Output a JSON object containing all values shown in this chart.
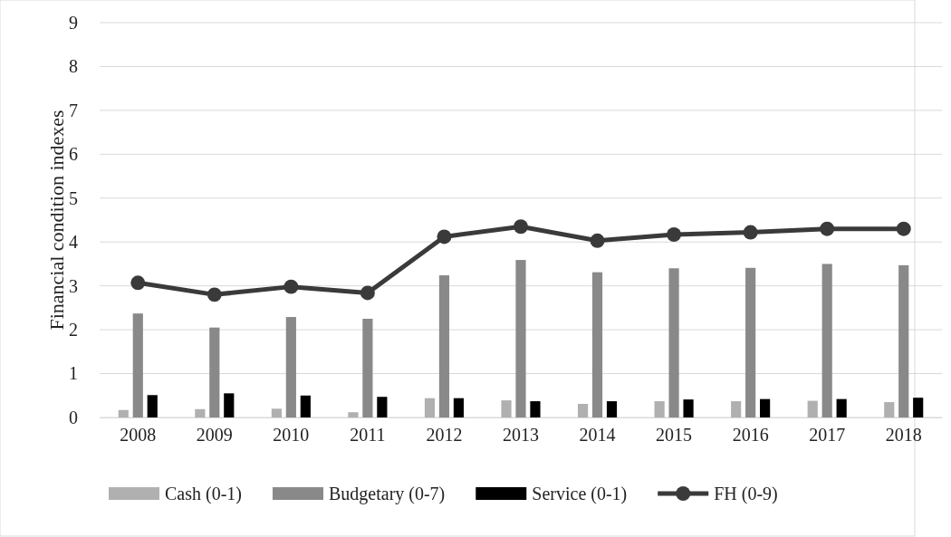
{
  "chart_data": {
    "type": "bar",
    "ylabel": "Financial condition indexes",
    "categories": [
      "2008",
      "2009",
      "2010",
      "2011",
      "2012",
      "2013",
      "2014",
      "2015",
      "2016",
      "2017",
      "2018"
    ],
    "series": [
      {
        "name": "Cash (0-1)",
        "color": "#b0b0b0",
        "values": [
          0.17,
          0.19,
          0.2,
          0.12,
          0.44,
          0.39,
          0.31,
          0.37,
          0.37,
          0.38,
          0.35
        ]
      },
      {
        "name": "Budgetary (0-7)",
        "color": "#898989",
        "values": [
          2.37,
          2.05,
          2.29,
          2.25,
          3.24,
          3.59,
          3.31,
          3.4,
          3.41,
          3.5,
          3.47
        ]
      },
      {
        "name": "Service (0-1)",
        "color": "#000000",
        "values": [
          0.51,
          0.55,
          0.5,
          0.47,
          0.44,
          0.37,
          0.37,
          0.41,
          0.42,
          0.42,
          0.45
        ]
      },
      {
        "name": "FH (0-9)",
        "type": "line",
        "color": "#3a3a3a",
        "marker": "circle",
        "values": [
          3.07,
          2.8,
          2.98,
          2.84,
          4.12,
          4.35,
          4.03,
          4.17,
          4.22,
          4.3,
          4.3
        ]
      }
    ],
    "ylim": [
      0,
      9
    ],
    "yticks": [
      0,
      1,
      2,
      3,
      4,
      5,
      6,
      7,
      8,
      9
    ],
    "grid": "y",
    "legend": "bottom"
  }
}
